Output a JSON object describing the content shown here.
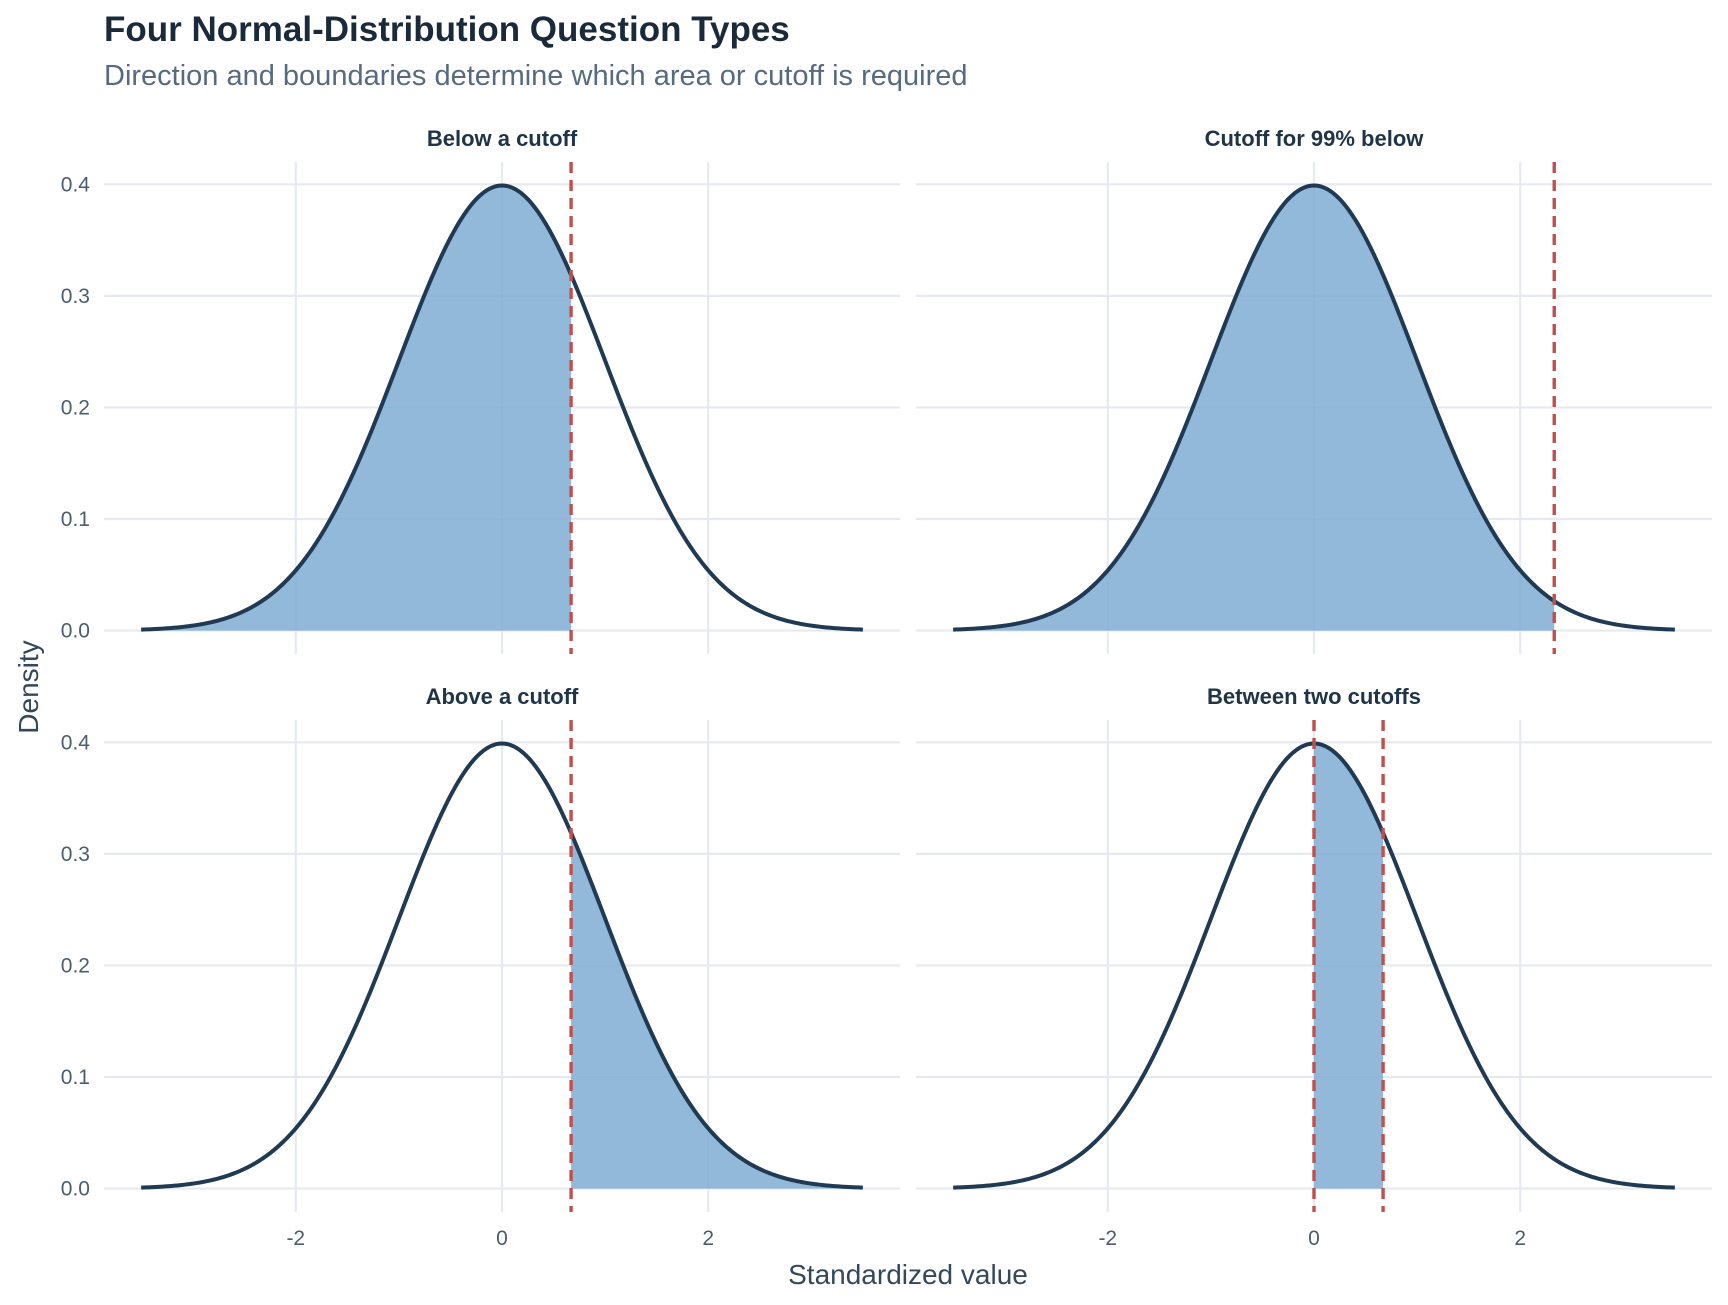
{
  "chart_data": {
    "type": "area",
    "title": "Four Normal-Distribution Question Types",
    "subtitle": "Direction and boundaries determine which area or cutoff is required",
    "xlabel": "Standardized value",
    "ylabel": "Density",
    "xlim": [
      -3.5,
      3.5
    ],
    "ylim": [
      0,
      0.4
    ],
    "x_ticks": [
      -2,
      0,
      2
    ],
    "x_tick_labels": [
      "-2",
      "0",
      "2"
    ],
    "y_ticks": [
      0.0,
      0.1,
      0.2,
      0.3,
      0.4
    ],
    "y_tick_labels": [
      "0.0",
      "0.1",
      "0.2",
      "0.3",
      "0.4"
    ],
    "grid": true,
    "distribution": "standard normal",
    "colors": {
      "curve": "#1f3a52",
      "fill": "#7fadd3",
      "cutoff": "#c0504d",
      "grid": "#e6eaf0"
    },
    "panels": [
      {
        "title": "Below a cutoff",
        "shade_from": -3.5,
        "shade_to": 0.67,
        "cutoffs": [
          0.67
        ]
      },
      {
        "title": "Cutoff for 99% below",
        "shade_from": -3.5,
        "shade_to": 2.33,
        "cutoffs": [
          2.33
        ]
      },
      {
        "title": "Above a cutoff",
        "shade_from": 0.67,
        "shade_to": 3.5,
        "cutoffs": [
          0.67
        ]
      },
      {
        "title": "Between two cutoffs",
        "shade_from": 0,
        "shade_to": 0.67,
        "cutoffs": [
          0,
          0.67
        ]
      }
    ]
  }
}
